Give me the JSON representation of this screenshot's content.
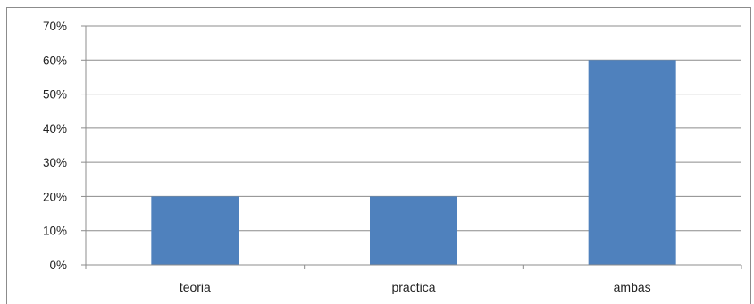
{
  "chart_data": {
    "type": "bar",
    "categories": [
      "teoria",
      "practica",
      "ambas"
    ],
    "values": [
      0.2,
      0.2,
      0.6
    ],
    "y_tick_labels": [
      "0%",
      "10%",
      "20%",
      "30%",
      "40%",
      "50%",
      "60%",
      "70%"
    ],
    "ylim": [
      0,
      0.7
    ],
    "grid": true,
    "legend": "none",
    "bar_color": "#4f81bd",
    "grid_color": "#8c8c8c"
  }
}
